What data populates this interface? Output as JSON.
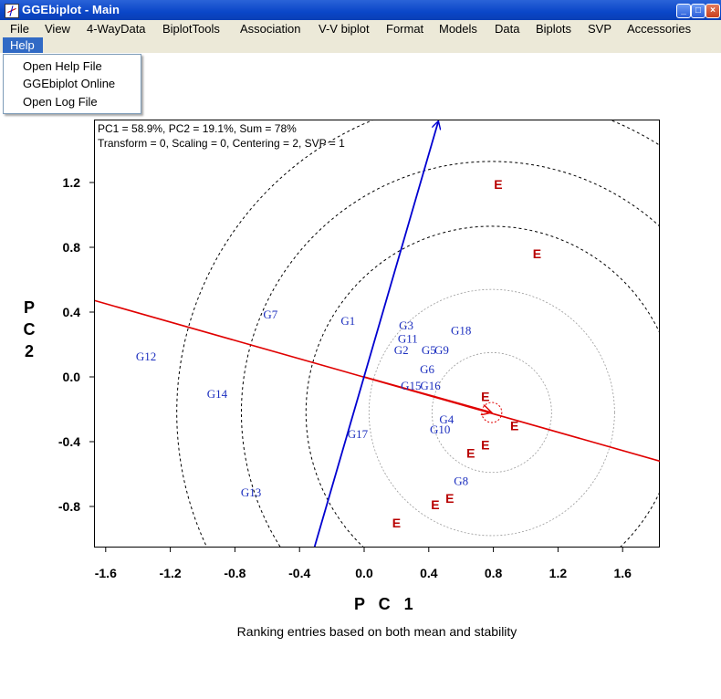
{
  "window": {
    "title": "GGEbiplot - Main",
    "icon": "ggebiplot-app-icon"
  },
  "window_buttons": {
    "minimize": "_",
    "maximize": "□",
    "close": "×"
  },
  "menu": {
    "items": [
      "File",
      "View",
      "4-WayData",
      "BiplotTools",
      "Association",
      "V-V biplot",
      "Format",
      "Models",
      "Data",
      "Biplots",
      "SVP",
      "Accessories"
    ],
    "help": "Help"
  },
  "help_menu": {
    "items": [
      "Open Help File",
      "GGEbiplot Online",
      "Open Log File"
    ]
  },
  "plot": {
    "info_line1": "PC1 = 58.9%, PC2 = 19.1%, Sum = 78%",
    "info_line2": "Transform = 0, Scaling = 0, Centering = 2, SVP = 1",
    "xlabel": "P C 1",
    "ylabel_chars": [
      "P",
      "C",
      "2"
    ],
    "caption": "Ranking entries based on both mean and stability"
  },
  "colors": {
    "genotype": "#1c2fbf",
    "environment": "#b80000",
    "aec_axis": "#e00000",
    "ordinate": "#0000d0"
  },
  "chart_data": {
    "type": "scatter",
    "title": "",
    "xlabel": "P C 1",
    "ylabel": "P C 2",
    "xlim": [
      -1.68,
      1.83
    ],
    "ylim": [
      -1.05,
      1.58
    ],
    "x_ticks": [
      "-1.6",
      "-1.2",
      "-0.8",
      "-0.4",
      "0.0",
      "0.4",
      "0.8",
      "1.2",
      "1.6"
    ],
    "y_ticks": [
      "-0.8",
      "-0.4",
      "0.0",
      "0.4",
      "0.8",
      "1.2"
    ],
    "series": [
      {
        "name": "Genotypes",
        "marker": "label",
        "points": [
          {
            "label": "G1",
            "x": -0.1,
            "y": 0.35
          },
          {
            "label": "G2",
            "x": 0.23,
            "y": 0.17
          },
          {
            "label": "G3",
            "x": 0.26,
            "y": 0.32
          },
          {
            "label": "G11",
            "x": 0.27,
            "y": 0.24
          },
          {
            "label": "G5",
            "x": 0.4,
            "y": 0.17
          },
          {
            "label": "G9",
            "x": 0.48,
            "y": 0.17
          },
          {
            "label": "G18",
            "x": 0.6,
            "y": 0.29
          },
          {
            "label": "G6",
            "x": 0.39,
            "y": 0.05
          },
          {
            "label": "G15",
            "x": 0.29,
            "y": -0.05
          },
          {
            "label": "G16",
            "x": 0.41,
            "y": -0.05
          },
          {
            "label": "G4",
            "x": 0.51,
            "y": -0.26
          },
          {
            "label": "G10",
            "x": 0.47,
            "y": -0.32
          },
          {
            "label": "G17",
            "x": -0.04,
            "y": -0.35
          },
          {
            "label": "G8",
            "x": 0.6,
            "y": -0.64
          },
          {
            "label": "G7",
            "x": -0.58,
            "y": 0.39
          },
          {
            "label": "G12",
            "x": -1.35,
            "y": 0.13
          },
          {
            "label": "G14",
            "x": -0.91,
            "y": -0.1
          },
          {
            "label": "G13",
            "x": -0.7,
            "y": -0.71
          }
        ]
      },
      {
        "name": "Environments",
        "marker": "E",
        "points": [
          {
            "label": "E",
            "x": 0.83,
            "y": 1.19
          },
          {
            "label": "E",
            "x": 1.07,
            "y": 0.76
          },
          {
            "label": "E",
            "x": 0.75,
            "y": -0.12
          },
          {
            "label": "E",
            "x": 0.93,
            "y": -0.3
          },
          {
            "label": "E",
            "x": 0.75,
            "y": -0.42
          },
          {
            "label": "E",
            "x": 0.66,
            "y": -0.47
          },
          {
            "label": "E",
            "x": 0.53,
            "y": -0.75
          },
          {
            "label": "E",
            "x": 0.44,
            "y": -0.79
          },
          {
            "label": "E",
            "x": 0.2,
            "y": -0.9
          }
        ]
      }
    ],
    "average_environment_axis": {
      "from": [
        -1.7,
        0.48
      ],
      "to": [
        1.83,
        -0.52
      ]
    },
    "average_environment_point": {
      "x": 0.79,
      "y": -0.22
    },
    "ordinate": {
      "from": [
        -0.31,
        -1.06
      ],
      "to": [
        0.46,
        1.58
      ]
    },
    "concentric_circles": {
      "center": [
        0.79,
        -0.22
      ],
      "radii": [
        0.37,
        0.76,
        1.15,
        1.55,
        1.95
      ]
    }
  }
}
